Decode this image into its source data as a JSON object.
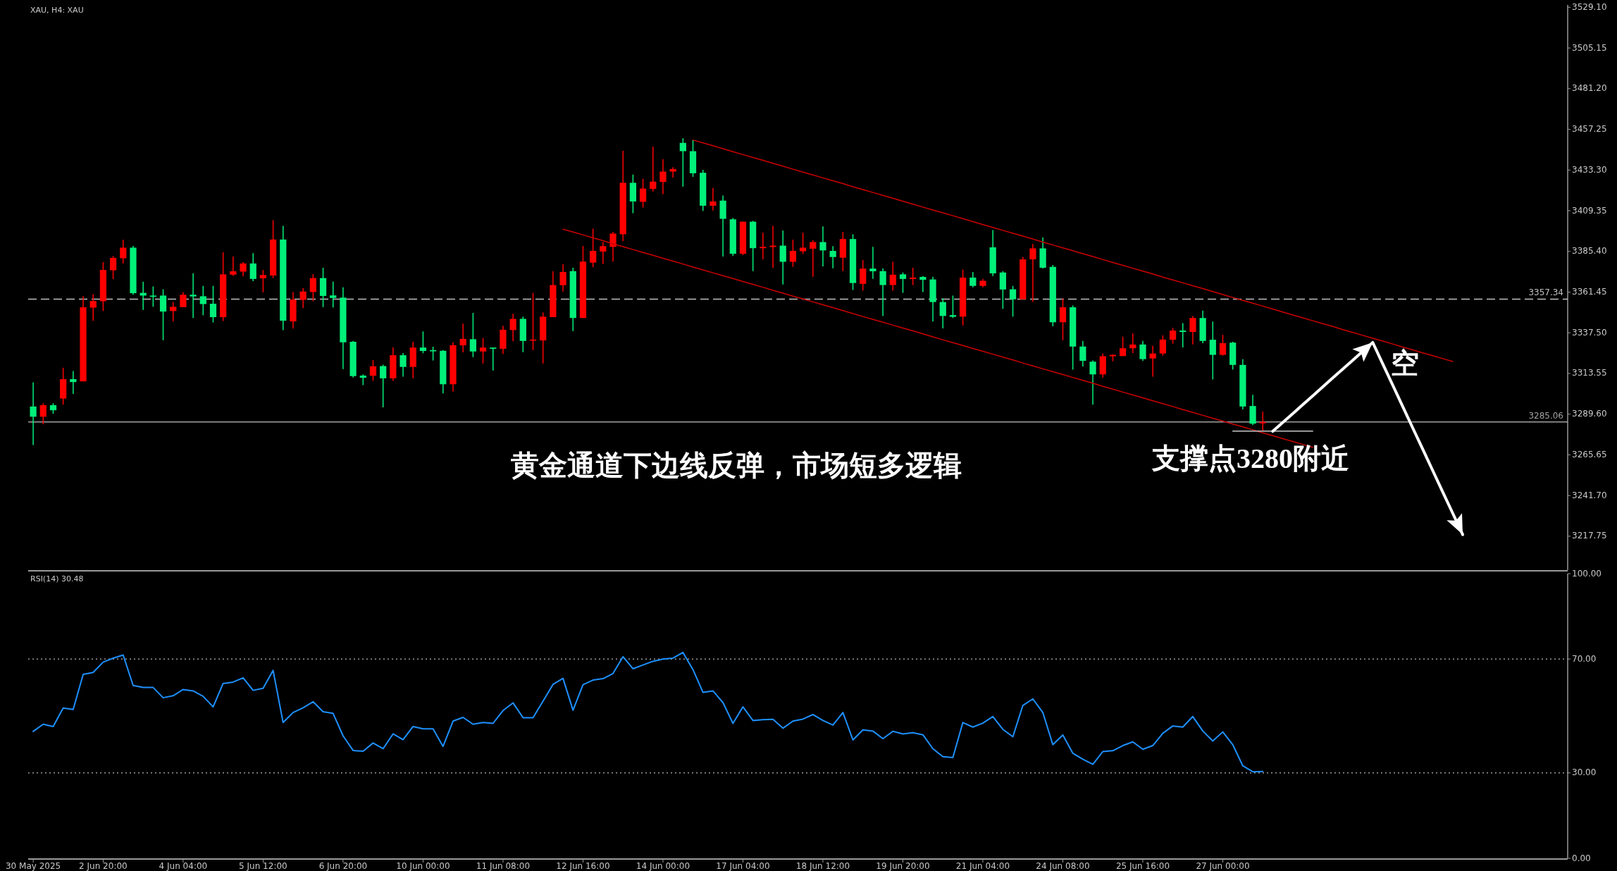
{
  "chart_data": [
    {
      "type": "candlestick",
      "title": "XAU, H4: XAU",
      "categories": [
        null,
        null,
        null,
        null,
        null,
        null,
        null,
        null,
        null,
        null,
        null,
        null,
        null,
        null,
        null,
        null,
        null,
        null,
        null,
        null,
        null,
        null,
        null,
        null,
        null,
        null,
        null,
        null,
        null,
        null,
        null,
        null,
        null,
        null,
        null,
        null,
        null,
        null,
        null,
        null,
        null,
        null,
        null,
        null,
        null,
        null,
        null,
        null,
        null,
        null,
        null,
        null,
        null,
        null,
        null,
        null,
        null,
        null,
        null,
        null,
        null,
        null,
        null,
        null,
        null,
        null,
        null,
        null,
        null,
        null,
        null,
        null,
        null,
        null,
        null,
        null,
        null,
        null,
        null,
        null,
        null,
        null,
        null,
        null,
        null,
        null,
        null,
        null,
        null,
        null,
        null,
        null,
        null,
        null,
        null,
        null,
        null,
        null,
        null,
        null,
        null,
        null,
        null,
        null,
        null,
        null,
        null,
        null,
        null,
        null,
        null,
        null,
        null,
        null,
        null,
        null,
        null,
        null,
        null,
        null,
        null,
        null,
        null,
        null,
        null,
        null,
        null,
        null,
        null,
        null,
        null,
        null,
        null,
        null,
        null,
        null,
        null,
        null,
        null,
        null,
        null,
        null,
        null,
        null,
        null,
        null,
        null,
        null,
        null,
        null,
        null,
        null,
        null,
        null
      ],
      "ohlc": [
        [
          3294.1,
          3308.4,
          3271.4,
          3288.1
        ],
        [
          3288.1,
          3296.0,
          3283.7,
          3294.9
        ],
        [
          3294.9,
          3296.0,
          3289.8,
          3291.9
        ],
        [
          3298.8,
          3316.9,
          3295.2,
          3310.2
        ],
        [
          3310.2,
          3315.0,
          3301.5,
          3308.5
        ],
        [
          3308.9,
          3359.0,
          3308.9,
          3352.5
        ],
        [
          3352.3,
          3360.2,
          3344.6,
          3356.2
        ],
        [
          3356.1,
          3379.1,
          3350.3,
          3374.5
        ],
        [
          3374.3,
          3382.7,
          3369.1,
          3381.6
        ],
        [
          3381.4,
          3392.3,
          3378.4,
          3387.6
        ],
        [
          3387.6,
          3388.6,
          3359.9,
          3360.8
        ],
        [
          3361.0,
          3367.6,
          3351.0,
          3359.4
        ],
        [
          3359.4,
          3364.8,
          3352.8,
          3358.7
        ],
        [
          3359.4,
          3363.1,
          3333.1,
          3350.0
        ],
        [
          3350.3,
          3355.6,
          3344.2,
          3352.8
        ],
        [
          3352.6,
          3361.5,
          3352.6,
          3359.9
        ],
        [
          3359.9,
          3372.5,
          3346.2,
          3358.9
        ],
        [
          3359.0,
          3365.1,
          3347.8,
          3354.4
        ],
        [
          3354.6,
          3365.1,
          3343.6,
          3346.7
        ],
        [
          3346.7,
          3384.9,
          3344.4,
          3371.9
        ],
        [
          3371.7,
          3382.4,
          3371.0,
          3373.7
        ],
        [
          3373.5,
          3379.1,
          3370.7,
          3378.3
        ],
        [
          3378.3,
          3384.4,
          3367.9,
          3369.2
        ],
        [
          3369.6,
          3374.5,
          3361.3,
          3371.5
        ],
        [
          3371.2,
          3403.8,
          3369.7,
          3392.4
        ],
        [
          3392.4,
          3400.5,
          3339.1,
          3344.6
        ],
        [
          3344.2,
          3361.5,
          3340.0,
          3357.1
        ],
        [
          3356.9,
          3363.8,
          3352.0,
          3361.8
        ],
        [
          3361.5,
          3372.0,
          3356.1,
          3369.7
        ],
        [
          3369.7,
          3375.8,
          3352.6,
          3359.2
        ],
        [
          3359.5,
          3367.6,
          3352.4,
          3358.0
        ],
        [
          3358.2,
          3364.3,
          3316.1,
          3331.9
        ],
        [
          3332.2,
          3332.7,
          3311.2,
          3312.0
        ],
        [
          3312.3,
          3313.0,
          3306.7,
          3311.0
        ],
        [
          3312.2,
          3321.5,
          3309.2,
          3317.8
        ],
        [
          3317.9,
          3318.7,
          3293.6,
          3310.7
        ],
        [
          3310.7,
          3328.9,
          3309.2,
          3324.3
        ],
        [
          3324.3,
          3325.6,
          3311.7,
          3317.4
        ],
        [
          3317.4,
          3332.2,
          3310.7,
          3328.8
        ],
        [
          3328.8,
          3338.3,
          3325.5,
          3326.8
        ],
        [
          3327.3,
          3329.3,
          3321.2,
          3326.6
        ],
        [
          3326.9,
          3327.3,
          3301.8,
          3307.2
        ],
        [
          3307.2,
          3331.9,
          3302.9,
          3330.2
        ],
        [
          3330.1,
          3342.9,
          3326.0,
          3333.9
        ],
        [
          3333.7,
          3349.2,
          3323.2,
          3326.5
        ],
        [
          3326.5,
          3334.4,
          3319.4,
          3328.8
        ],
        [
          3328.8,
          3328.8,
          3315.3,
          3328.1
        ],
        [
          3328.1,
          3341.6,
          3325.1,
          3339.3
        ],
        [
          3339.1,
          3348.7,
          3332.5,
          3345.7
        ],
        [
          3345.7,
          3347.0,
          3326.1,
          3332.7
        ],
        [
          3332.9,
          3361.0,
          3327.3,
          3333.5
        ],
        [
          3333.0,
          3349.5,
          3319.4,
          3347.0
        ],
        [
          3346.7,
          3373.7,
          3346.7,
          3365.6
        ],
        [
          3365.5,
          3377.8,
          3361.8,
          3373.3
        ],
        [
          3373.8,
          3375.8,
          3338.5,
          3346.2
        ],
        [
          3346.2,
          3388.6,
          3346.2,
          3379.4
        ],
        [
          3378.8,
          3398.8,
          3376.1,
          3385.7
        ],
        [
          3385.3,
          3390.9,
          3378.0,
          3388.5
        ],
        [
          3388.1,
          3396.9,
          3379.4,
          3395.9
        ],
        [
          3395.5,
          3444.6,
          3391.4,
          3425.8
        ],
        [
          3425.8,
          3430.6,
          3407.9,
          3414.8
        ],
        [
          3414.6,
          3428.1,
          3411.2,
          3422.4
        ],
        [
          3422.2,
          3447.0,
          3420.7,
          3426.5
        ],
        [
          3426.3,
          3439.6,
          3419.1,
          3432.4
        ],
        [
          3432.4,
          3435.0,
          3428.9,
          3433.9
        ],
        [
          3449.3,
          3452.0,
          3423.5,
          3444.4
        ],
        [
          3444.4,
          3451.0,
          3429.3,
          3431.4
        ],
        [
          3431.7,
          3433.4,
          3409.2,
          3412.3
        ],
        [
          3412.3,
          3422.7,
          3409.5,
          3414.8
        ],
        [
          3415.3,
          3418.3,
          3382.4,
          3404.6
        ],
        [
          3404.3,
          3405.1,
          3382.7,
          3384.0
        ],
        [
          3384.0,
          3402.9,
          3383.2,
          3402.9
        ],
        [
          3402.9,
          3403.4,
          3373.8,
          3387.3
        ],
        [
          3387.3,
          3396.4,
          3380.7,
          3388.1
        ],
        [
          3388.0,
          3400.5,
          3375.8,
          3388.8
        ],
        [
          3388.8,
          3397.7,
          3365.9,
          3379.3
        ],
        [
          3379.3,
          3392.3,
          3376.3,
          3385.7
        ],
        [
          3385.5,
          3396.4,
          3383.9,
          3387.6
        ],
        [
          3387.0,
          3391.9,
          3370.5,
          3390.9
        ],
        [
          3390.9,
          3400.1,
          3376.6,
          3386.0
        ],
        [
          3385.7,
          3388.5,
          3375.5,
          3382.1
        ],
        [
          3381.7,
          3396.9,
          3373.8,
          3392.7
        ],
        [
          3392.7,
          3395.5,
          3362.7,
          3366.8
        ],
        [
          3366.3,
          3380.3,
          3362.3,
          3375.3
        ],
        [
          3375.3,
          3388.1,
          3369.2,
          3373.7
        ],
        [
          3373.8,
          3375.5,
          3347.4,
          3365.6
        ],
        [
          3365.6,
          3379.4,
          3362.2,
          3371.7
        ],
        [
          3371.9,
          3373.0,
          3361.0,
          3369.2
        ],
        [
          3369.2,
          3375.8,
          3365.6,
          3370.0
        ],
        [
          3370.4,
          3370.9,
          3361.5,
          3368.7
        ],
        [
          3368.9,
          3370.5,
          3344.1,
          3355.6
        ],
        [
          3355.6,
          3357.7,
          3340.1,
          3347.4
        ],
        [
          3347.9,
          3359.4,
          3346.2,
          3346.9
        ],
        [
          3347.0,
          3374.7,
          3341.8,
          3370.0
        ],
        [
          3370.0,
          3373.3,
          3364.3,
          3365.1
        ],
        [
          3365.1,
          3369.2,
          3364.3,
          3368.1
        ],
        [
          3387.8,
          3398.0,
          3370.9,
          3372.5
        ],
        [
          3373.0,
          3373.8,
          3351.6,
          3363.0
        ],
        [
          3363.1,
          3365.1,
          3347.0,
          3357.2
        ],
        [
          3357.2,
          3382.1,
          3357.2,
          3380.7
        ],
        [
          3380.7,
          3389.8,
          3355.7,
          3387.2
        ],
        [
          3387.2,
          3393.6,
          3375.3,
          3375.8
        ],
        [
          3376.3,
          3377.4,
          3341.3,
          3343.7
        ],
        [
          3343.7,
          3357.7,
          3333.1,
          3352.5
        ],
        [
          3352.5,
          3353.6,
          3315.8,
          3329.4
        ],
        [
          3329.4,
          3332.7,
          3317.7,
          3321.0
        ],
        [
          3320.5,
          3321.2,
          3295.2,
          3313.0
        ],
        [
          3313.0,
          3325.3,
          3311.2,
          3323.7
        ],
        [
          3323.7,
          3324.8,
          3320.7,
          3324.5
        ],
        [
          3323.8,
          3335.2,
          3323.8,
          3328.4
        ],
        [
          3328.4,
          3337.2,
          3325.6,
          3330.6
        ],
        [
          3330.6,
          3332.7,
          3321.0,
          3322.0
        ],
        [
          3322.4,
          3329.8,
          3311.7,
          3325.3
        ],
        [
          3325.3,
          3336.0,
          3324.0,
          3333.5
        ],
        [
          3333.4,
          3340.4,
          3331.1,
          3338.8
        ],
        [
          3338.8,
          3343.2,
          3328.9,
          3338.0
        ],
        [
          3338.0,
          3347.4,
          3330.6,
          3346.2
        ],
        [
          3346.2,
          3350.6,
          3331.4,
          3332.7
        ],
        [
          3333.4,
          3344.1,
          3310.0,
          3324.5
        ],
        [
          3324.5,
          3336.3,
          3324.0,
          3331.4
        ],
        [
          3331.7,
          3332.2,
          3315.8,
          3318.6
        ],
        [
          3318.6,
          3321.9,
          3292.4,
          3294.1
        ],
        [
          3294.4,
          3301.0,
          3283.2,
          3284.0
        ],
        [
          3284.2,
          3291.1,
          3279.6,
          3285.06
        ],
        null,
        null,
        null,
        null,
        null,
        null,
        null,
        null,
        null,
        null,
        null,
        null,
        null,
        null,
        null,
        null,
        null,
        null,
        null,
        null,
        null,
        null,
        null,
        null,
        null,
        null,
        null,
        null,
        null,
        null
      ],
      "colors": [
        "#00f07a",
        "#ff0000",
        "#00f07a",
        "#ff0000",
        "#00f07a",
        "#ff0000",
        "#ff0000",
        "#ff0000",
        "#ff0000",
        "#ff0000",
        "#00f07a",
        "#00f07a",
        "#00f07a",
        "#00f07a",
        "#ff0000",
        "#ff0000",
        "#00f07a",
        "#00f07a",
        "#00f07a",
        "#ff0000",
        "#ff0000",
        "#ff0000",
        "#00f07a",
        "#ff0000",
        "#ff0000",
        "#00f07a",
        "#ff0000",
        "#ff0000",
        "#ff0000",
        "#00f07a",
        "#00f07a",
        "#00f07a",
        "#00f07a",
        "#00f07a",
        "#ff0000",
        "#00f07a",
        "#ff0000",
        "#00f07a",
        "#ff0000",
        "#00f07a",
        "#00f07a",
        "#00f07a",
        "#ff0000",
        "#ff0000",
        "#00f07a",
        "#ff0000",
        "#00f07a",
        "#ff0000",
        "#ff0000",
        "#00f07a",
        "#ff0000",
        "#ff0000",
        "#ff0000",
        "#ff0000",
        "#00f07a",
        "#ff0000",
        "#ff0000",
        "#ff0000",
        "#ff0000",
        "#ff0000",
        "#00f07a",
        "#ff0000",
        "#ff0000",
        "#ff0000",
        "#ff0000",
        "#00f07a",
        "#00f07a",
        "#00f07a",
        "#ff0000",
        "#00f07a",
        "#00f07a",
        "#ff0000",
        "#00f07a",
        "#ff0000",
        "#ff0000",
        "#00f07a",
        "#ff0000",
        "#ff0000",
        "#ff0000",
        "#00f07a",
        "#00f07a",
        "#ff0000",
        "#00f07a",
        "#ff0000",
        "#00f07a",
        "#00f07a",
        "#ff0000",
        "#00f07a",
        "#ff0000",
        "#00f07a",
        "#00f07a",
        "#00f07a",
        "#00f07a",
        "#ff0000",
        "#00f07a",
        "#ff0000",
        "#00f07a",
        "#00f07a",
        "#00f07a",
        "#ff0000",
        "#ff0000",
        "#00f07a",
        "#00f07a",
        "#ff0000",
        "#00f07a",
        "#00f07a",
        "#00f07a",
        "#ff0000",
        "#ff0000",
        "#ff0000",
        "#ff0000",
        "#00f07a",
        "#ff0000",
        "#ff0000",
        "#ff0000",
        "#00f07a",
        "#ff0000",
        "#00f07a",
        "#00f07a",
        "#ff0000",
        "#00f07a",
        "#00f07a",
        "#00f07a",
        "#ff0000",
        null,
        null,
        null,
        null,
        null,
        null,
        null,
        null,
        null,
        null,
        null,
        null,
        null,
        null,
        null,
        null,
        null,
        null,
        null,
        null,
        null,
        null,
        null,
        null,
        null,
        null,
        null,
        null,
        null,
        null
      ],
      "series": [
        {
          "type": "line",
          "color": "#cc0000",
          "values": [
            null,
            null,
            null,
            null,
            null,
            null,
            null,
            null,
            null,
            null,
            null,
            null,
            null,
            null,
            null,
            null,
            null,
            null,
            null,
            null,
            null,
            null,
            null,
            null,
            null,
            null,
            null,
            null,
            null,
            null,
            null,
            null,
            null,
            null,
            null,
            null,
            null,
            null,
            null,
            null,
            null,
            null,
            null,
            null,
            null,
            null,
            null,
            null,
            null,
            null,
            null,
            null,
            null,
            3398.5,
            3396.8,
            3395.1,
            3393.4,
            3391.7,
            3389.9,
            3388.2,
            3386.5,
            3384.8,
            3383.1,
            3381.4,
            3379.7,
            3378.0,
            3376.2,
            3374.5,
            3372.8,
            3371.1,
            3369.4,
            3367.7,
            3366.0,
            3364.3,
            3362.5,
            3360.8,
            3359.1,
            3357.4,
            3355.7,
            3354.0,
            3352.3,
            3350.6,
            3348.8,
            3347.1,
            3345.4,
            3343.7,
            3342.0,
            3340.3,
            3338.6,
            3336.9,
            3335.1,
            3333.4,
            3331.7,
            3330.0,
            3328.3,
            3326.6,
            3324.9,
            3323.2,
            3321.5,
            3319.7,
            3318.0,
            3316.3,
            3314.6,
            3312.9,
            3311.2,
            3309.5,
            3307.8,
            3306.0,
            3304.3,
            3302.6,
            3300.9,
            3299.2,
            3297.5,
            3295.8,
            3294.1,
            3292.3,
            3290.6,
            3288.9,
            3287.2,
            3285.5,
            3283.8,
            3282.1,
            3280.4,
            3278.6,
            3276.9,
            3275.2,
            3273.5,
            3271.8,
            3270.1,
            null,
            null,
            null,
            null,
            null,
            null,
            null,
            null,
            null,
            null,
            null,
            null,
            null,
            null,
            null,
            null,
            null,
            null,
            null,
            null,
            null,
            null,
            null,
            null,
            null
          ]
        },
        {
          "type": "line",
          "color": "#cc0000",
          "values": [
            null,
            null,
            null,
            null,
            null,
            null,
            null,
            null,
            null,
            null,
            null,
            null,
            null,
            null,
            null,
            null,
            null,
            null,
            null,
            null,
            null,
            null,
            null,
            null,
            null,
            null,
            null,
            null,
            null,
            null,
            null,
            null,
            null,
            null,
            null,
            null,
            null,
            null,
            null,
            null,
            null,
            null,
            null,
            null,
            null,
            null,
            null,
            null,
            null,
            null,
            null,
            null,
            null,
            null,
            null,
            null,
            null,
            null,
            null,
            null,
            null,
            null,
            null,
            null,
            null,
            null,
            3451.0,
            3449.3,
            3447.6,
            3445.9,
            3444.1,
            3442.4,
            3440.7,
            3439.0,
            3437.3,
            3435.6,
            3433.8,
            3432.1,
            3430.4,
            3428.7,
            3427.0,
            3425.3,
            3423.5,
            3421.8,
            3420.1,
            3418.4,
            3416.7,
            3415.0,
            3413.2,
            3411.5,
            3409.8,
            3408.1,
            3406.4,
            3404.7,
            3402.9,
            3401.2,
            3399.5,
            3397.8,
            3396.1,
            3394.4,
            3392.7,
            3390.9,
            3389.2,
            3387.5,
            3385.8,
            3384.1,
            3382.4,
            3380.6,
            3378.9,
            3377.2,
            3375.5,
            3373.8,
            3372.1,
            3370.3,
            3368.6,
            3366.9,
            3365.2,
            3363.5,
            3361.8,
            3360.0,
            3358.3,
            3356.6,
            3354.9,
            3353.2,
            3351.5,
            3349.7,
            3348.0,
            3346.3,
            3344.6,
            3342.9,
            3341.2,
            3339.4,
            3337.7,
            3336.0,
            3334.3,
            3332.6,
            3330.9,
            3329.1,
            3327.4,
            3325.7,
            3324.0,
            3322.3,
            3320.6,
            null,
            null,
            null,
            null,
            null,
            null,
            null,
            null,
            null,
            null,
            null
          ]
        },
        {
          "type": "line",
          "color": "#c8c8c8",
          "values": [
            null,
            null,
            null,
            null,
            null,
            null,
            null,
            null,
            null,
            null,
            null,
            null,
            null,
            null,
            null,
            null,
            null,
            null,
            null,
            null,
            null,
            null,
            null,
            null,
            null,
            null,
            null,
            null,
            null,
            null,
            null,
            null,
            null,
            null,
            null,
            null,
            null,
            null,
            null,
            null,
            null,
            null,
            null,
            null,
            null,
            null,
            null,
            null,
            null,
            null,
            null,
            null,
            null,
            null,
            null,
            null,
            null,
            null,
            null,
            null,
            null,
            null,
            null,
            null,
            null,
            null,
            null,
            null,
            null,
            null,
            null,
            null,
            null,
            null,
            null,
            null,
            null,
            null,
            null,
            null,
            null,
            null,
            null,
            null,
            null,
            null,
            null,
            null,
            null,
            null,
            null,
            null,
            null,
            null,
            null,
            null,
            null,
            null,
            null,
            null,
            null,
            null,
            null,
            null,
            null,
            null,
            null,
            null,
            null,
            null,
            null,
            null,
            null,
            null,
            null,
            null,
            null,
            null,
            null,
            null,
            3279.6,
            3279.6,
            3279.6,
            3279.6,
            3279.6,
            3279.6,
            3279.6,
            3279.6,
            3279.6,
            null,
            null,
            null,
            null,
            null,
            null,
            null,
            null,
            null,
            null,
            null,
            null,
            null,
            null,
            null,
            null,
            null,
            null,
            null,
            null,
            null,
            null,
            null,
            null,
            null
          ]
        },
        {
          "type": "line",
          "color": "#ffffff",
          "values": [
            null,
            null,
            null,
            null,
            null,
            null,
            null,
            null,
            null,
            null,
            null,
            null,
            null,
            null,
            null,
            null,
            null,
            null,
            null,
            null,
            null,
            null,
            null,
            null,
            null,
            null,
            null,
            null,
            null,
            null,
            null,
            null,
            null,
            null,
            null,
            null,
            null,
            null,
            null,
            null,
            null,
            null,
            null,
            null,
            null,
            null,
            null,
            null,
            null,
            null,
            null,
            null,
            null,
            null,
            null,
            null,
            null,
            null,
            null,
            null,
            null,
            null,
            null,
            null,
            null,
            null,
            null,
            null,
            null,
            null,
            null,
            null,
            null,
            null,
            null,
            null,
            null,
            null,
            null,
            null,
            null,
            null,
            null,
            null,
            null,
            null,
            null,
            null,
            null,
            null,
            null,
            null,
            null,
            null,
            null,
            null,
            null,
            null,
            null,
            null,
            null,
            null,
            null,
            null,
            null,
            null,
            null,
            null,
            null,
            null,
            null,
            null,
            null,
            null,
            null,
            null,
            null,
            null,
            null,
            null,
            null,
            null,
            null,
            null,
            3279.5,
            3284.7,
            3289.9,
            3295.2,
            3300.4,
            3305.7,
            3310.9,
            3316.1,
            3321.3,
            3326.6,
            3331.8,
            3319.2,
            3306.7,
            3294.1,
            3281.5,
            3269.0,
            3256.4,
            3243.8,
            3231.3,
            3218.7,
            null,
            null,
            null,
            null,
            null,
            null,
            null,
            null,
            null,
            null
          ]
        }
      ],
      "ylim": [
        3197.8,
        3530.5
      ],
      "yticks": [
        {
          "value": 3529.1,
          "label": "3529.10"
        },
        {
          "value": 3505.15,
          "label": "3505.15"
        },
        {
          "value": 3481.2,
          "label": "3481.20"
        },
        {
          "value": 3457.25,
          "label": "3457.25"
        },
        {
          "value": 3433.3,
          "label": "3433.30"
        },
        {
          "value": 3409.35,
          "label": "3409.35"
        },
        {
          "value": 3385.4,
          "label": "3385.40"
        },
        {
          "value": 3361.45,
          "label": "3361.45"
        },
        {
          "value": 3337.5,
          "label": "3337.50"
        },
        {
          "value": 3313.55,
          "label": "3313.55"
        },
        {
          "value": 3289.6,
          "label": "3289.60"
        },
        {
          "value": 3265.65,
          "label": "3265.65"
        },
        {
          "value": 3241.7,
          "label": "3241.70"
        },
        {
          "value": 3217.75,
          "label": "3217.75"
        }
      ],
      "tick_labels": "y",
      "ref_lines": [
        {
          "axis": "y",
          "value": 3357.34,
          "label": "3357.34",
          "color": "#c0c0c0",
          "line_style": "dashed"
        },
        {
          "axis": "y",
          "value": 3285.06,
          "label": "3285.06",
          "color": "#a0a0a0",
          "line_style": "solid"
        }
      ],
      "annotations": [
        "黄金通道下边线反弹，市场短多逻辑",
        "支撑点3280附近",
        "空"
      ]
    },
    {
      "type": "line",
      "title": "RSI(14) 30.48",
      "categories": [
        "30 May 2025",
        null,
        null,
        null,
        null,
        null,
        null,
        "2 Jun 20:00",
        null,
        null,
        null,
        null,
        null,
        null,
        null,
        "4 Jun 04:00",
        null,
        null,
        null,
        null,
        null,
        null,
        null,
        "5 Jun 12:00",
        null,
        null,
        null,
        null,
        null,
        null,
        null,
        "6 Jun 20:00",
        null,
        null,
        null,
        null,
        null,
        null,
        null,
        "10 Jun 00:00",
        null,
        null,
        null,
        null,
        null,
        null,
        null,
        "11 Jun 08:00",
        null,
        null,
        null,
        null,
        null,
        null,
        null,
        "12 Jun 16:00",
        null,
        null,
        null,
        null,
        null,
        null,
        null,
        "14 Jun 00:00",
        null,
        null,
        null,
        null,
        null,
        null,
        null,
        "17 Jun 04:00",
        null,
        null,
        null,
        null,
        null,
        null,
        null,
        "18 Jun 12:00",
        null,
        null,
        null,
        null,
        null,
        null,
        null,
        "19 Jun 20:00",
        null,
        null,
        null,
        null,
        null,
        null,
        null,
        "21 Jun 04:00",
        null,
        null,
        null,
        null,
        null,
        null,
        null,
        "24 Jun 08:00",
        null,
        null,
        null,
        null,
        null,
        null,
        null,
        "25 Jun 16:00",
        null,
        null,
        null,
        null,
        null,
        null,
        null,
        "27 Jun 00:00",
        null,
        null,
        null,
        null,
        null,
        null,
        null,
        null,
        null,
        null,
        null,
        null,
        null,
        null,
        null,
        null,
        null,
        null,
        null,
        null,
        null,
        null,
        null,
        null,
        null,
        null,
        null,
        null,
        null,
        null,
        null,
        null,
        null,
        null
      ],
      "series": [
        {
          "color": "#1e90ff",
          "values": [
            44.6,
            47.1,
            46.3,
            52.8,
            52.3,
            64.6,
            65.3,
            68.9,
            70.3,
            71.4,
            60.7,
            60.0,
            60.0,
            56.4,
            57.1,
            59.3,
            58.8,
            56.9,
            53.2,
            61.4,
            61.9,
            63.4,
            59.0,
            59.7,
            66.0,
            47.7,
            51.2,
            52.9,
            55.0,
            51.5,
            50.9,
            43.0,
            37.9,
            37.6,
            40.5,
            38.5,
            43.7,
            41.7,
            46.3,
            45.5,
            45.5,
            39.3,
            48.2,
            49.5,
            47.1,
            47.7,
            47.4,
            51.9,
            54.6,
            49.4,
            49.4,
            55.2,
            61.1,
            63.2,
            52.0,
            61.0,
            62.6,
            63.1,
            64.9,
            70.8,
            66.6,
            67.9,
            69.2,
            70.0,
            70.3,
            72.3,
            66.3,
            58.3,
            58.8,
            54.7,
            47.4,
            53.2,
            48.4,
            48.7,
            48.8,
            45.7,
            48.2,
            48.9,
            50.5,
            48.4,
            46.8,
            51.2,
            41.6,
            45.1,
            44.7,
            42.0,
            44.6,
            43.7,
            44.1,
            43.4,
            38.5,
            35.7,
            35.4,
            47.7,
            46.1,
            47.5,
            49.8,
            45.3,
            42.7,
            53.7,
            56.0,
            51.2,
            39.9,
            43.3,
            36.9,
            34.8,
            33.0,
            37.5,
            37.8,
            39.6,
            40.9,
            38.3,
            39.6,
            43.9,
            46.5,
            46.1,
            49.8,
            44.7,
            41.2,
            44.4,
            39.9,
            32.5,
            30.4,
            30.5,
            null,
            null,
            null,
            null,
            null,
            null,
            null,
            null,
            null,
            null,
            null,
            null,
            null,
            null,
            null,
            null,
            null,
            null,
            null,
            null,
            null,
            null,
            null,
            null,
            null,
            null,
            null,
            null,
            null,
            null
          ]
        }
      ],
      "ylim": [
        0,
        100
      ],
      "yticks": [
        {
          "value": 100,
          "label": "100.00"
        },
        {
          "value": 70,
          "label": "70.00"
        },
        {
          "value": 30,
          "label": "30.00"
        },
        {
          "value": 0,
          "label": "0.00"
        }
      ],
      "ref_lines": [
        {
          "axis": "y",
          "value": 70,
          "color": "#9a9a9a",
          "line_style": "dotted"
        },
        {
          "axis": "y",
          "value": 30,
          "color": "#9a9a9a",
          "line_style": "dotted"
        }
      ]
    }
  ]
}
